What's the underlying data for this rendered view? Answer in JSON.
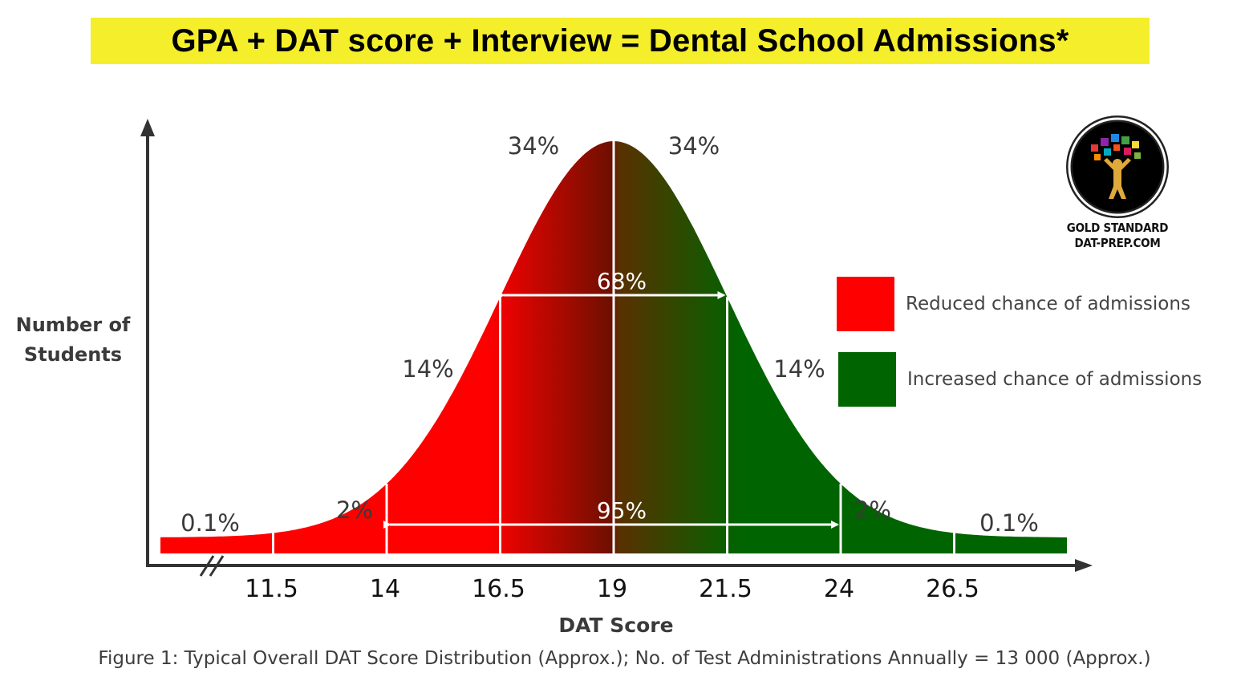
{
  "headline": "GPA + DAT score + Interview = Dental School Admissions*",
  "logo": {
    "line1": "GOLD STANDARD",
    "line2": "DAT-PREP.COM"
  },
  "legend": [
    {
      "label": "Reduced chance of admissions",
      "color": "#ff0000"
    },
    {
      "label": "Increased chance of admissions",
      "color": "#006400"
    }
  ],
  "caption": "Figure 1: Typical Overall DAT Score Distribution (Approx.); No. of Test Administrations Annually = 13 000 (Approx.)",
  "chart_data": {
    "type": "area",
    "xlabel": "DAT Score",
    "ylabel": "Number of Students",
    "x_ticks": [
      "11.5",
      "14",
      "16.5",
      "19",
      "21.5",
      "24",
      "26.5"
    ],
    "mean": 19,
    "sd": 2.5,
    "segments": [
      {
        "from": 11.5,
        "to": 14,
        "percent": "2%",
        "zone": "reduced"
      },
      {
        "from": 14,
        "to": 16.5,
        "percent": "14%",
        "zone": "reduced"
      },
      {
        "from": 16.5,
        "to": 19,
        "percent": "34%",
        "zone": "reduced"
      },
      {
        "from": 19,
        "to": 21.5,
        "percent": "34%",
        "zone": "increased"
      },
      {
        "from": 21.5,
        "to": 24,
        "percent": "14%",
        "zone": "increased"
      },
      {
        "from": 24,
        "to": 26.5,
        "percent": "2%",
        "zone": "increased"
      }
    ],
    "tails": [
      {
        "side": "left",
        "percent": "0.1%"
      },
      {
        "side": "right",
        "percent": "0.1%"
      }
    ],
    "ranges": [
      {
        "from": 16.5,
        "to": 21.5,
        "percent": "68%"
      },
      {
        "from": 14,
        "to": 24,
        "percent": "95%"
      }
    ],
    "colors": {
      "reduced": "#ff0000",
      "increased": "#006400",
      "dark_center": "#6b1000"
    }
  }
}
